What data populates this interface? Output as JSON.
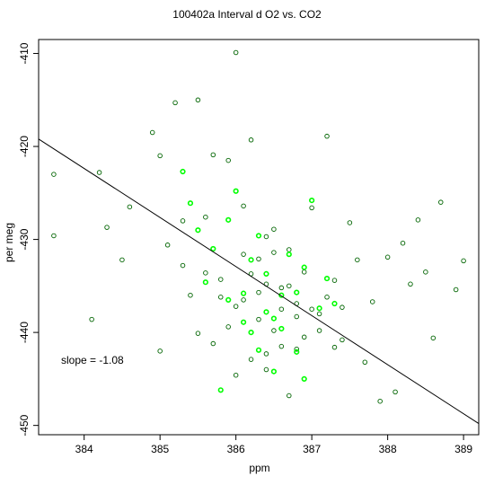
{
  "chart_data": {
    "type": "scatter",
    "title": "100402a   Interval d O2 vs. CO2",
    "xlabel": "ppm",
    "ylabel": "per meg",
    "xlim": [
      383.4,
      389.2
    ],
    "ylim": [
      -451.0,
      -408.5
    ],
    "x_ticks": [
      384,
      385,
      386,
      387,
      388,
      389
    ],
    "y_ticks": [
      -450,
      -440,
      -430,
      -420,
      -410
    ],
    "annotation": "slope =  -1.08",
    "grid": false,
    "legend": "none",
    "colors": {
      "dark_points": "#006400",
      "bright_points": "#00ff00",
      "fit_line": "#000000"
    },
    "fit_line": {
      "slope": -1.08,
      "x0": 383.4,
      "y0": -419.2,
      "x1": 389.2,
      "y1": -449.8
    },
    "series": [
      {
        "color": "#006400",
        "x": [
          383.6,
          383.6,
          384.1,
          384.2,
          384.3,
          384.5,
          384.6,
          384.9,
          385.0,
          385.1,
          385.2,
          385.3,
          385.3,
          385.5,
          385.6,
          385.7,
          385.8,
          385.9,
          386.0,
          386.1,
          386.2,
          386.3,
          386.4,
          386.5,
          386.6,
          386.7,
          386.8,
          386.9,
          387.0,
          387.1,
          387.2,
          387.3,
          387.4,
          387.5,
          387.6,
          387.7,
          387.8,
          387.9,
          388.0,
          388.1,
          388.2,
          388.3,
          388.4,
          388.5,
          388.6,
          388.7,
          388.9,
          389.0,
          385.4,
          385.0,
          386.3,
          386.5,
          386.4,
          386.6,
          386.2,
          386.8,
          386.0,
          385.9,
          386.1,
          387.0,
          386.7,
          386.9,
          385.8,
          386.4,
          386.3,
          386.6,
          387.2,
          387.1,
          385.6,
          385.7,
          386.0,
          386.2,
          386.5,
          386.8,
          387.3,
          386.1,
          386.4,
          386.7,
          385.5,
          387.4
        ],
        "y": [
          -423.0,
          -429.6,
          -438.6,
          -422.8,
          -428.7,
          -432.2,
          -426.5,
          -418.5,
          -421.0,
          -430.6,
          -415.3,
          -428.0,
          -432.8,
          -415.0,
          -433.6,
          -420.9,
          -436.2,
          -421.5,
          -409.9,
          -426.4,
          -419.3,
          -435.7,
          -444.0,
          -428.9,
          -437.5,
          -431.1,
          -441.8,
          -433.5,
          -426.6,
          -438.0,
          -418.9,
          -434.4,
          -440.8,
          -428.2,
          -432.2,
          -443.2,
          -436.7,
          -447.4,
          -431.9,
          -446.4,
          -430.4,
          -434.8,
          -427.9,
          -433.5,
          -440.6,
          -426.0,
          -435.4,
          -432.3,
          -436.0,
          -442.0,
          -438.6,
          -439.8,
          -434.8,
          -441.5,
          -442.9,
          -436.9,
          -437.2,
          -439.4,
          -431.6,
          -437.5,
          -446.8,
          -440.5,
          -434.3,
          -429.7,
          -432.1,
          -435.2,
          -436.2,
          -439.8,
          -427.6,
          -441.2,
          -444.6,
          -433.7,
          -431.4,
          -438.3,
          -441.6,
          -436.5,
          -442.3,
          -435.0,
          -440.1,
          -437.3
        ]
      },
      {
        "color": "#00ff00",
        "x": [
          385.3,
          385.4,
          385.6,
          385.8,
          385.9,
          386.1,
          386.2,
          386.3,
          386.4,
          386.5,
          386.6,
          386.7,
          386.8,
          386.9,
          387.0,
          387.1,
          387.2,
          386.0,
          386.3,
          386.6,
          385.7,
          386.4,
          386.8,
          386.2,
          385.5,
          386.9,
          386.5,
          386.1,
          385.9,
          387.3
        ],
        "y": [
          -422.7,
          -426.1,
          -434.6,
          -446.2,
          -427.9,
          -435.8,
          -440.0,
          -429.6,
          -433.7,
          -438.5,
          -436.0,
          -431.6,
          -442.1,
          -445.0,
          -425.8,
          -437.4,
          -434.2,
          -424.8,
          -441.9,
          -439.6,
          -431.0,
          -437.8,
          -435.7,
          -432.2,
          -429.0,
          -433.0,
          -444.2,
          -438.9,
          -436.5,
          -436.9
        ]
      }
    ]
  }
}
